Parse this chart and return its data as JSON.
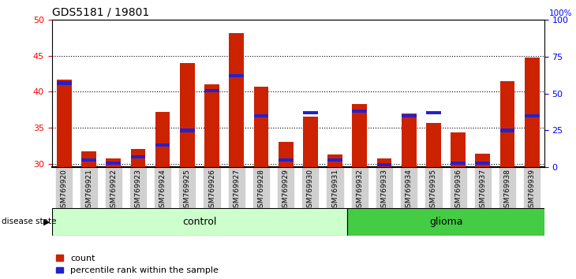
{
  "title": "GDS5181 / 19801",
  "samples": [
    "GSM769920",
    "GSM769921",
    "GSM769922",
    "GSM769923",
    "GSM769924",
    "GSM769925",
    "GSM769926",
    "GSM769927",
    "GSM769928",
    "GSM769929",
    "GSM769930",
    "GSM769931",
    "GSM769932",
    "GSM769933",
    "GSM769934",
    "GSM769935",
    "GSM769936",
    "GSM769937",
    "GSM769938",
    "GSM769939"
  ],
  "counts": [
    41.7,
    31.7,
    30.7,
    32.1,
    37.2,
    44.0,
    41.0,
    48.1,
    40.7,
    33.0,
    36.5,
    31.3,
    38.3,
    30.7,
    37.0,
    35.7,
    34.3,
    31.4,
    41.4,
    44.7
  ],
  "percentile_ranks": [
    57,
    5,
    3,
    7,
    15,
    25,
    52,
    62,
    35,
    5,
    37,
    5,
    38,
    2,
    35,
    37,
    3,
    3,
    25,
    35
  ],
  "ylim_left": [
    29.5,
    50
  ],
  "ylim_right": [
    0,
    100
  ],
  "bar_color": "#cc2200",
  "pct_color": "#2222cc",
  "control_count": 12,
  "legend_count_label": "count",
  "legend_pct_label": "percentile rank within the sample",
  "control_label": "control",
  "glioma_label": "glioma",
  "disease_state_label": "disease state",
  "control_fill": "#ccffcc",
  "glioma_fill": "#44cc44",
  "xtick_bg": "#d0d0d0",
  "yticks_left": [
    30,
    35,
    40,
    45,
    50
  ],
  "yticks_right": [
    0,
    25,
    50,
    75,
    100
  ],
  "bar_width": 0.6
}
